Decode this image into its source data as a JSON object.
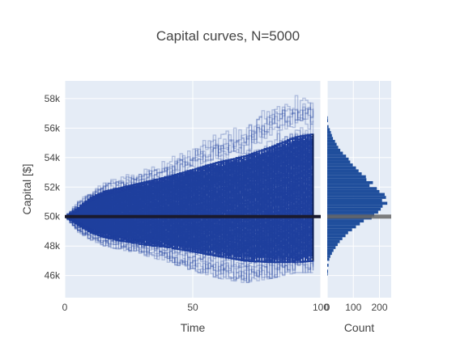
{
  "chart_data": {
    "title": "Capital curves, N=5000",
    "main": {
      "type": "line",
      "xlabel": "Time",
      "ylabel": "Capital [$]",
      "xlim": [
        0,
        100
      ],
      "ylim": [
        44500,
        59200
      ],
      "x_ticks": [
        {
          "value": 0,
          "label": "0"
        },
        {
          "value": 50,
          "label": "50"
        },
        {
          "value": 100,
          "label": "100"
        }
      ],
      "y_ticks": [
        {
          "value": 46000,
          "label": "46k"
        },
        {
          "value": 48000,
          "label": "48k"
        },
        {
          "value": 50000,
          "label": "50k"
        },
        {
          "value": 52000,
          "label": "52k"
        },
        {
          "value": 54000,
          "label": "54k"
        },
        {
          "value": 56000,
          "label": "56k"
        },
        {
          "value": 58000,
          "label": "58k"
        }
      ],
      "n_curves": 5000,
      "start_value": 50000,
      "final_time": 97,
      "mean_line_value": 50000,
      "envelope": {
        "time": [
          0,
          5,
          10,
          15,
          20,
          30,
          40,
          50,
          60,
          70,
          80,
          90,
          97
        ],
        "upper": [
          50000,
          51100,
          51800,
          52400,
          52600,
          53200,
          53900,
          54800,
          55700,
          56200,
          57600,
          58200,
          58200
        ],
        "lower": [
          50000,
          48900,
          48400,
          48000,
          47800,
          47400,
          46900,
          46300,
          45800,
          45500,
          45800,
          46200,
          46200
        ],
        "dense_upper": [
          50000,
          50600,
          51300,
          51700,
          51900,
          52300,
          52700,
          53200,
          53700,
          54100,
          54700,
          55400,
          55600
        ],
        "dense_lower": [
          50000,
          49400,
          48900,
          48600,
          48400,
          48100,
          47900,
          47600,
          47300,
          47000,
          46900,
          46900,
          47000
        ]
      },
      "line_color": "#1f3f9e",
      "mean_line_color": "#1a1a2e",
      "grid": true,
      "background": "#e5ecf6"
    },
    "histogram": {
      "type": "bar",
      "orientation": "horizontal",
      "xlabel": "Count",
      "xlim": [
        0,
        245
      ],
      "x_ticks": [
        {
          "value": 0,
          "label": "0"
        },
        {
          "value": 100,
          "label": "100"
        },
        {
          "value": 200,
          "label": "200"
        }
      ],
      "bin_width": 200,
      "bins": [
        {
          "y": 56600,
          "count": 2
        },
        {
          "y": 56400,
          "count": 3
        },
        {
          "y": 56000,
          "count": 5
        },
        {
          "y": 55800,
          "count": 10
        },
        {
          "y": 55600,
          "count": 14
        },
        {
          "y": 55400,
          "count": 18
        },
        {
          "y": 55200,
          "count": 22
        },
        {
          "y": 55000,
          "count": 30
        },
        {
          "y": 54800,
          "count": 36
        },
        {
          "y": 54600,
          "count": 42
        },
        {
          "y": 54400,
          "count": 50
        },
        {
          "y": 54200,
          "count": 60
        },
        {
          "y": 54000,
          "count": 72
        },
        {
          "y": 53800,
          "count": 82
        },
        {
          "y": 53600,
          "count": 88
        },
        {
          "y": 53400,
          "count": 98
        },
        {
          "y": 53200,
          "count": 110
        },
        {
          "y": 53000,
          "count": 120
        },
        {
          "y": 52800,
          "count": 132
        },
        {
          "y": 52600,
          "count": 148
        },
        {
          "y": 52400,
          "count": 150
        },
        {
          "y": 52200,
          "count": 175
        },
        {
          "y": 52000,
          "count": 162
        },
        {
          "y": 51800,
          "count": 190
        },
        {
          "y": 51600,
          "count": 200
        },
        {
          "y": 51400,
          "count": 220
        },
        {
          "y": 51200,
          "count": 225
        },
        {
          "y": 51000,
          "count": 210
        },
        {
          "y": 50800,
          "count": 230
        },
        {
          "y": 50600,
          "count": 212
        },
        {
          "y": 50400,
          "count": 205
        },
        {
          "y": 50200,
          "count": 195
        },
        {
          "y": 50000,
          "count": 180
        },
        {
          "y": 49800,
          "count": 170
        },
        {
          "y": 49600,
          "count": 140
        },
        {
          "y": 49400,
          "count": 125
        },
        {
          "y": 49200,
          "count": 110
        },
        {
          "y": 49000,
          "count": 95
        },
        {
          "y": 48800,
          "count": 80
        },
        {
          "y": 48600,
          "count": 70
        },
        {
          "y": 48400,
          "count": 58
        },
        {
          "y": 48200,
          "count": 48
        },
        {
          "y": 48000,
          "count": 40
        },
        {
          "y": 47800,
          "count": 32
        },
        {
          "y": 47600,
          "count": 24
        },
        {
          "y": 47400,
          "count": 18
        },
        {
          "y": 47200,
          "count": 12
        },
        {
          "y": 47000,
          "count": 8
        },
        {
          "y": 46600,
          "count": 5
        },
        {
          "y": 46200,
          "count": 3
        },
        {
          "y": 46000,
          "count": 2
        }
      ],
      "bar_color": "#1f4e9c",
      "mean_line_color": "#666666",
      "background": "#e5ecf6"
    }
  }
}
